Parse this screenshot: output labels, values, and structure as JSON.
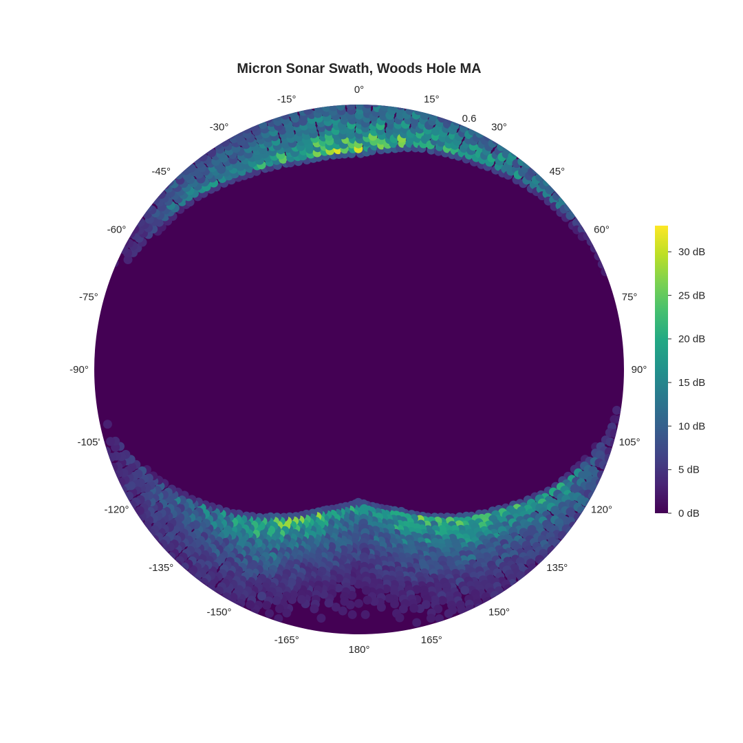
{
  "chart_data": {
    "type": "heatmap",
    "projection": "polar",
    "title": "Micron Sonar Swath, Woods Hole MA",
    "theta_zero_location": "top",
    "theta_direction": "clockwise",
    "theta_ticks": [
      0,
      15,
      30,
      45,
      60,
      75,
      90,
      105,
      120,
      135,
      150,
      165,
      180,
      -165,
      -150,
      -135,
      -120,
      -105,
      -90,
      -75,
      -60,
      -45,
      -30,
      -15
    ],
    "theta_tick_labels": [
      "0°",
      "15°",
      "30°",
      "45°",
      "60°",
      "75°",
      "90°",
      "105°",
      "120°",
      "135°",
      "150°",
      "165°",
      "180°",
      "-165°",
      "-150°",
      "-135°",
      "-120°",
      "-105'",
      "-90°",
      "-75°",
      "-60°",
      "-45°",
      "-30°",
      "-15°"
    ],
    "r_tick_label": "0.6",
    "r_tick_value": 0.6,
    "r_max": 0.6,
    "colorbar": {
      "colormap": "viridis",
      "min": 0,
      "max": 33,
      "unit": "dB",
      "ticks": [
        0,
        5,
        10,
        15,
        20,
        25,
        30
      ],
      "tick_labels": [
        "0 dB",
        "5 dB",
        "10 dB",
        "15 dB",
        "20 dB",
        "25 dB",
        "30 dB"
      ]
    },
    "background_color": "#440154",
    "intensity_profile": [
      {
        "theta": -180,
        "r_peak": 0.312,
        "peak_db": 22
      },
      {
        "theta": -165,
        "r_peak": 0.342,
        "peak_db": 27
      },
      {
        "theta": -150,
        "r_peak": 0.398,
        "peak_db": 31
      },
      {
        "theta": -135,
        "r_peak": 0.459,
        "peak_db": 20
      },
      {
        "theta": -120,
        "r_peak": 0.525,
        "peak_db": 12
      },
      {
        "theta": -105,
        "r_peak": 0.58,
        "peak_db": 4
      },
      {
        "theta": -90,
        "r_peak": 0.6,
        "peak_db": 0
      },
      {
        "theta": -75,
        "r_peak": 0.6,
        "peak_db": 0
      },
      {
        "theta": -60,
        "r_peak": 0.57,
        "peak_db": 6
      },
      {
        "theta": -45,
        "r_peak": 0.55,
        "peak_db": 18
      },
      {
        "theta": -30,
        "r_peak": 0.52,
        "peak_db": 20
      },
      {
        "theta": -15,
        "r_peak": 0.5,
        "peak_db": 30
      },
      {
        "theta": 0,
        "r_peak": 0.5,
        "peak_db": 33
      },
      {
        "theta": 15,
        "r_peak": 0.53,
        "peak_db": 28
      },
      {
        "theta": 30,
        "r_peak": 0.55,
        "peak_db": 22
      },
      {
        "theta": 45,
        "r_peak": 0.58,
        "peak_db": 20
      },
      {
        "theta": 60,
        "r_peak": 0.6,
        "peak_db": 8
      },
      {
        "theta": 75,
        "r_peak": 0.6,
        "peak_db": 0
      },
      {
        "theta": 90,
        "r_peak": 0.6,
        "peak_db": 0
      },
      {
        "theta": 105,
        "r_peak": 0.585,
        "peak_db": 6
      },
      {
        "theta": 120,
        "r_peak": 0.532,
        "peak_db": 22
      },
      {
        "theta": 135,
        "r_peak": 0.459,
        "peak_db": 26
      },
      {
        "theta": 150,
        "r_peak": 0.398,
        "peak_db": 30
      },
      {
        "theta": 165,
        "r_peak": 0.342,
        "peak_db": 28
      },
      {
        "theta": 180,
        "r_peak": 0.312,
        "peak_db": 22
      }
    ]
  }
}
